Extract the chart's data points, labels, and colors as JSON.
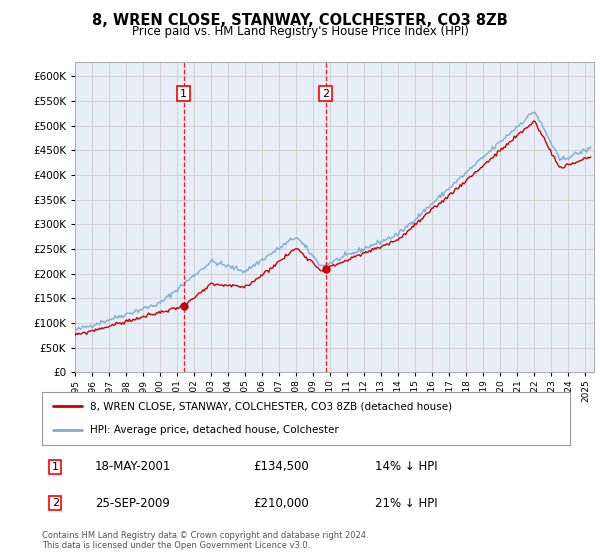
{
  "title": "8, WREN CLOSE, STANWAY, COLCHESTER, CO3 8ZB",
  "subtitle": "Price paid vs. HM Land Registry's House Price Index (HPI)",
  "ylim": [
    0,
    630000
  ],
  "ytick_values": [
    0,
    50000,
    100000,
    150000,
    200000,
    250000,
    300000,
    350000,
    400000,
    450000,
    500000,
    550000,
    600000
  ],
  "bg_color": "#e8eef8",
  "grid_color": "#cccccc",
  "hpi_color": "#7ab0d4",
  "price_color": "#cc0000",
  "sale1_date_num": 2001.38,
  "sale1_price": 134500,
  "sale2_date_num": 2009.73,
  "sale2_price": 210000,
  "legend_entry1": "8, WREN CLOSE, STANWAY, COLCHESTER, CO3 8ZB (detached house)",
  "legend_entry2": "HPI: Average price, detached house, Colchester",
  "annotation1_date": "18-MAY-2001",
  "annotation1_price": "£134,500",
  "annotation1_hpi": "14% ↓ HPI",
  "annotation2_date": "25-SEP-2009",
  "annotation2_price": "£210,000",
  "annotation2_hpi": "21% ↓ HPI",
  "footer": "Contains HM Land Registry data © Crown copyright and database right 2024.\nThis data is licensed under the Open Government Licence v3.0."
}
